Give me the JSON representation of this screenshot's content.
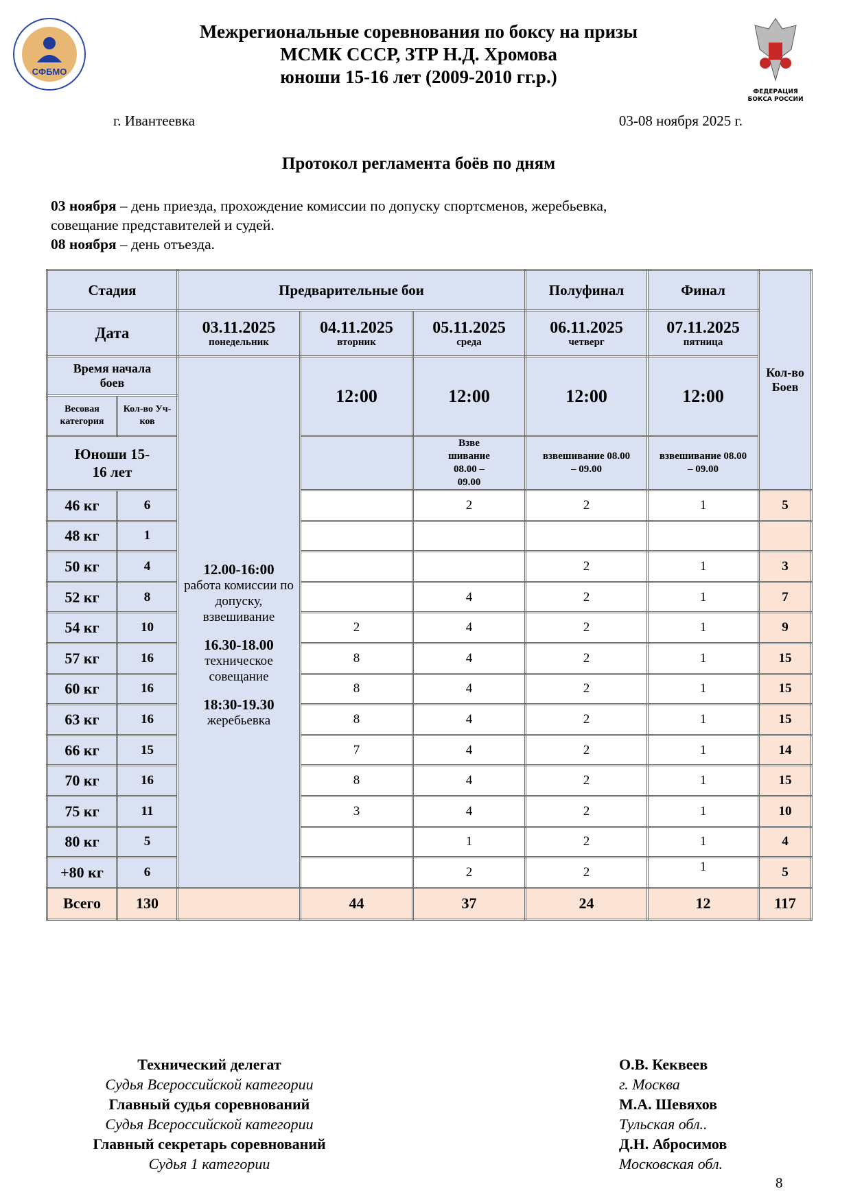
{
  "header": {
    "title_lines": [
      "Межрегиональные соревнования по боксу на призы",
      "МСМК СССР, ЗТР Н.Д. Хромова",
      "юноши 15-16 лет (2009-2010 гг.р.)"
    ],
    "logo_left_text": "СФБМО",
    "logo_right_text": [
      "ФЕДЕРАЦИЯ",
      "БОКСА РОССИИ"
    ],
    "city": "г. Ивантеевка",
    "dates": "03-08 ноября 2025 г."
  },
  "protocol_title": "Протокол регламента боёв по дням",
  "intro": [
    {
      "bold": "03 ноября",
      "text": " – день приезда, прохождение комиссии по допуску спортсменов, жеребьевка,"
    },
    {
      "bold": "",
      "text": "совещание представителей и судей."
    },
    {
      "bold": "08 ноября",
      "text": " – день отъезда."
    }
  ],
  "table": {
    "stage_label": "Стадия",
    "stages": [
      "Предварительные бои",
      "Полуфинал",
      "Финал"
    ],
    "bouts_count_label": "Кол-во Боев",
    "date_label": "Дата",
    "days": [
      {
        "date": "03.11.2025",
        "weekday": "понедельник"
      },
      {
        "date": "04.11.2025",
        "weekday": "вторник"
      },
      {
        "date": "05.11.2025",
        "weekday": "среда"
      },
      {
        "date": "06.11.2025",
        "weekday": "четверг"
      },
      {
        "date": "07.11.2025",
        "weekday": "пятница"
      }
    ],
    "start_time_label": "Время начала боев",
    "start_times": [
      "12:00",
      "12:00",
      "12:00",
      "12:00"
    ],
    "weight_cat_label": "Весовая категория",
    "participants_label": "Кол-во Уч-ков",
    "group_label": "Юноши 15-16 лет",
    "weighins": [
      "",
      "Взве шивание 08.00 – 09.00",
      "взвешивание 08.00 – 09.00",
      "взвешивание 08.00 – 09.00"
    ],
    "day1_schedule": [
      {
        "time": "12.00-16:00",
        "text": "работа комиссии по допуску, взвешивание"
      },
      {
        "time": "16.30-18.00",
        "text": "техническое совещание"
      },
      {
        "time": "18:30-19.30",
        "text": "жеребьевка"
      }
    ],
    "rows": [
      {
        "weight": "46 кг",
        "count": "6",
        "d2": "",
        "d3": "2",
        "d4": "2",
        "d5": "1",
        "total": "5"
      },
      {
        "weight": "48 кг",
        "count": "1",
        "d2": "",
        "d3": "",
        "d4": "",
        "d5": "",
        "total": ""
      },
      {
        "weight": "50 кг",
        "count": "4",
        "d2": "",
        "d3": "",
        "d4": "2",
        "d5": "1",
        "total": "3"
      },
      {
        "weight": "52 кг",
        "count": "8",
        "d2": "",
        "d3": "4",
        "d4": "2",
        "d5": "1",
        "total": "7"
      },
      {
        "weight": "54 кг",
        "count": "10",
        "d2": "2",
        "d3": "4",
        "d4": "2",
        "d5": "1",
        "total": "9"
      },
      {
        "weight": "57 кг",
        "count": "16",
        "d2": "8",
        "d3": "4",
        "d4": "2",
        "d5": "1",
        "total": "15"
      },
      {
        "weight": "60 кг",
        "count": "16",
        "d2": "8",
        "d3": "4",
        "d4": "2",
        "d5": "1",
        "total": "15"
      },
      {
        "weight": "63 кг",
        "count": "16",
        "d2": "8",
        "d3": "4",
        "d4": "2",
        "d5": "1",
        "total": "15"
      },
      {
        "weight": "66 кг",
        "count": "15",
        "d2": "7",
        "d3": "4",
        "d4": "2",
        "d5": "1",
        "total": "14"
      },
      {
        "weight": "70 кг",
        "count": "16",
        "d2": "8",
        "d3": "4",
        "d4": "2",
        "d5": "1",
        "total": "15"
      },
      {
        "weight": "75 кг",
        "count": "11",
        "d2": "3",
        "d3": "4",
        "d4": "2",
        "d5": "1",
        "total": "10"
      },
      {
        "weight": "80 кг",
        "count": "5",
        "d2": "",
        "d3": "1",
        "d4": "2",
        "d5": "1",
        "total": "4"
      },
      {
        "weight": "+80 кг",
        "count": "6",
        "d2": "",
        "d3": "2",
        "d4": "2",
        "d5": "1",
        "total": "5"
      }
    ],
    "totals": {
      "label": "Всего",
      "count": "130",
      "d1": "",
      "d2": "44",
      "d3": "37",
      "d4": "24",
      "d5": "12",
      "total": "117"
    },
    "colors": {
      "header_bg": "#d9e1f2",
      "total_bg": "#fbe4d5"
    }
  },
  "signatures": {
    "left": [
      {
        "text": "Технический делегат",
        "style": "bold"
      },
      {
        "text": "Судья Всероссийской категории",
        "style": "italic"
      },
      {
        "text": "Главный судья соревнований",
        "style": "bold"
      },
      {
        "text": "Судья Всероссийской категории",
        "style": "italic"
      },
      {
        "text": "Главный секретарь соревнований",
        "style": "bold"
      },
      {
        "text": "Судья 1 категории",
        "style": "italic"
      }
    ],
    "right": [
      {
        "text": "О.В. Кеквеев",
        "style": "bold"
      },
      {
        "text": "г. Москва",
        "style": "italic"
      },
      {
        "text": "М.А. Шевяхов",
        "style": "bold"
      },
      {
        "text": "Тульская обл..",
        "style": "italic"
      },
      {
        "text": "Д.Н. Абросимов",
        "style": "bold"
      },
      {
        "text": "Московская обл.",
        "style": "italic"
      }
    ]
  },
  "page_number": "8"
}
